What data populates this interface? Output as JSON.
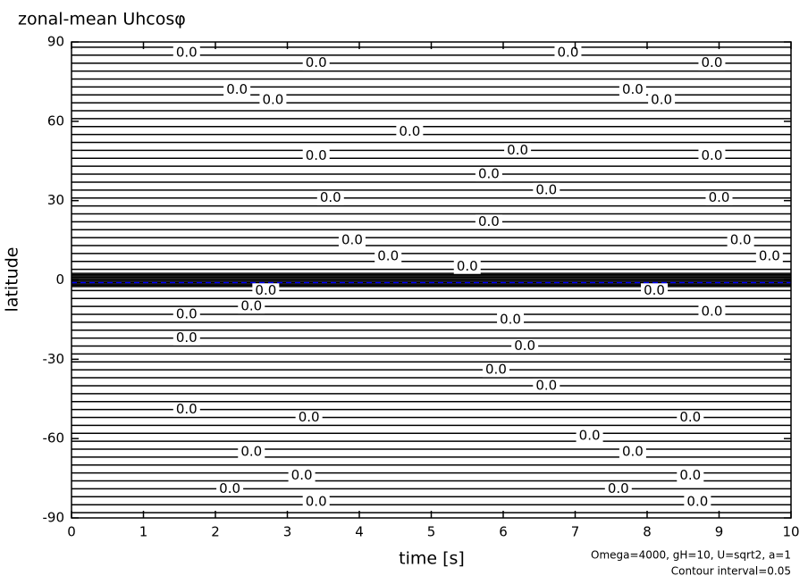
{
  "chart_data": {
    "type": "contour",
    "title": "zonal-mean Uhcosφ",
    "xlabel": "time [s]",
    "ylabel": "latitude",
    "notes": [
      "Omega=4000, gH=10, U=sqrt2, a=1",
      "Contour interval=0.05"
    ],
    "xlim": [
      0,
      10
    ],
    "ylim": [
      -90,
      90
    ],
    "xticks": [
      0,
      1,
      2,
      3,
      4,
      5,
      6,
      7,
      8,
      9,
      10
    ],
    "yticks": [
      -90,
      -60,
      -30,
      0,
      30,
      60,
      90
    ],
    "color": "#000000",
    "contour_latitudes": [
      -88,
      -85,
      -82,
      -79,
      -76,
      -73,
      -70,
      -67,
      -64,
      -61,
      -58,
      -55,
      -52,
      -49,
      -46,
      -43,
      -40,
      -37,
      -34,
      -31,
      -28,
      -25,
      -22,
      -19,
      -16,
      -13,
      -10,
      -7,
      -4,
      -2.5,
      -2,
      -1.5,
      -1,
      -0.5,
      0,
      0.5,
      1,
      1.5,
      2,
      2.5,
      4,
      7,
      10,
      13,
      16,
      19,
      22,
      25,
      28,
      31,
      34,
      37,
      40,
      43,
      46,
      49,
      52,
      55,
      58,
      61,
      64,
      67,
      70,
      73,
      76,
      79,
      82,
      85,
      88
    ],
    "equator_line": {
      "latitude": -1,
      "color": "#0000ff"
    },
    "contour_labels": [
      {
        "x": 1.6,
        "y": 86,
        "label": "0.0"
      },
      {
        "x": 3.4,
        "y": 82,
        "label": "0.0"
      },
      {
        "x": 6.9,
        "y": 86,
        "label": "0.0"
      },
      {
        "x": 8.9,
        "y": 82,
        "label": "0.0"
      },
      {
        "x": 2.3,
        "y": 72,
        "label": "0.0"
      },
      {
        "x": 2.8,
        "y": 68,
        "label": "0.0"
      },
      {
        "x": 7.8,
        "y": 72,
        "label": "0.0"
      },
      {
        "x": 8.2,
        "y": 68,
        "label": "0.0"
      },
      {
        "x": 4.7,
        "y": 56,
        "label": "0.0"
      },
      {
        "x": 6.2,
        "y": 49,
        "label": "0.0"
      },
      {
        "x": 3.4,
        "y": 47,
        "label": "0.0"
      },
      {
        "x": 8.9,
        "y": 47,
        "label": "0.0"
      },
      {
        "x": 5.8,
        "y": 40,
        "label": "0.0"
      },
      {
        "x": 6.6,
        "y": 34,
        "label": "0.0"
      },
      {
        "x": 3.6,
        "y": 31,
        "label": "0.0"
      },
      {
        "x": 9.0,
        "y": 31,
        "label": "0.0"
      },
      {
        "x": 5.8,
        "y": 22,
        "label": "0.0"
      },
      {
        "x": 3.9,
        "y": 15,
        "label": "0.0"
      },
      {
        "x": 9.3,
        "y": 15,
        "label": "0.0"
      },
      {
        "x": 4.4,
        "y": 9,
        "label": "0.0"
      },
      {
        "x": 9.7,
        "y": 9,
        "label": "0.0"
      },
      {
        "x": 5.5,
        "y": 5,
        "label": "0.0"
      },
      {
        "x": 2.7,
        "y": -4,
        "label": "0.0"
      },
      {
        "x": 8.1,
        "y": -4,
        "label": "0.0"
      },
      {
        "x": 2.5,
        "y": -10,
        "label": "0.0"
      },
      {
        "x": 8.9,
        "y": -12,
        "label": "0.0"
      },
      {
        "x": 1.6,
        "y": -13,
        "label": "0.0"
      },
      {
        "x": 6.1,
        "y": -15,
        "label": "0.0"
      },
      {
        "x": 1.6,
        "y": -22,
        "label": "0.0"
      },
      {
        "x": 6.3,
        "y": -25,
        "label": "0.0"
      },
      {
        "x": 5.9,
        "y": -34,
        "label": "0.0"
      },
      {
        "x": 6.6,
        "y": -40,
        "label": "0.0"
      },
      {
        "x": 1.6,
        "y": -49,
        "label": "0.0"
      },
      {
        "x": 3.3,
        "y": -52,
        "label": "0.0"
      },
      {
        "x": 8.6,
        "y": -52,
        "label": "0.0"
      },
      {
        "x": 7.2,
        "y": -59,
        "label": "0.0"
      },
      {
        "x": 2.5,
        "y": -65,
        "label": "0.0"
      },
      {
        "x": 7.8,
        "y": -65,
        "label": "0.0"
      },
      {
        "x": 3.2,
        "y": -74,
        "label": "0.0"
      },
      {
        "x": 8.6,
        "y": -74,
        "label": "0.0"
      },
      {
        "x": 2.2,
        "y": -79,
        "label": "0.0"
      },
      {
        "x": 7.6,
        "y": -79,
        "label": "0.0"
      },
      {
        "x": 3.4,
        "y": -84,
        "label": "0.0"
      },
      {
        "x": 8.7,
        "y": -84,
        "label": "0.0"
      }
    ]
  }
}
